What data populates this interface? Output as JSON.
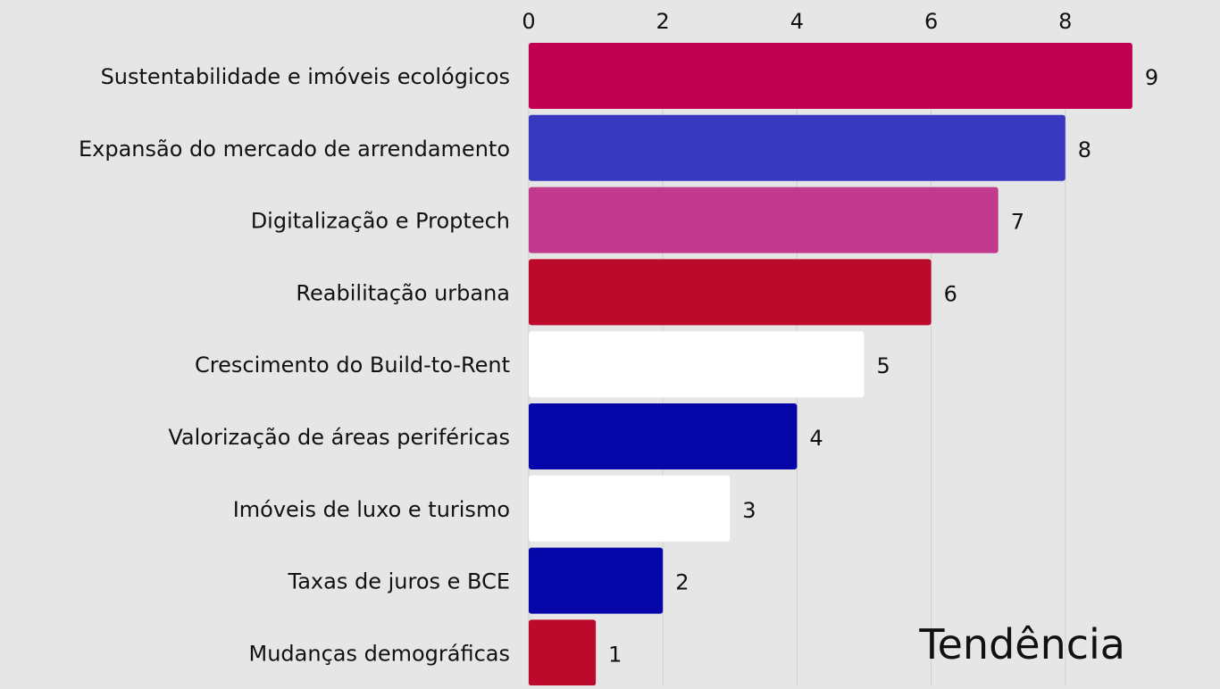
{
  "chart_data": {
    "type": "bar",
    "orientation": "horizontal",
    "title": "Tendência",
    "categories": [
      "Sustentabilidade e imóveis ecológicos",
      "Expansão do mercado de arrendamento",
      "Digitalização e Proptech",
      "Reabilitação urbana",
      "Crescimento do Build-to-Rent",
      "Valorização de áreas periféricas",
      "Imóveis de luxo e turismo",
      "Taxas de juros e BCE",
      "Mudanças demográficas"
    ],
    "values": [
      9,
      8,
      7,
      6,
      5,
      4,
      3,
      2,
      1
    ],
    "bar_colors": [
      "#c20052",
      "#3838c0",
      "#c23a8e",
      "#bb0a2b",
      "#ffffff",
      "#0505a8",
      "#ffffff",
      "#0505a8",
      "#bb0a2b"
    ],
    "xlim": [
      0,
      9
    ],
    "xticks": [
      "0",
      "2",
      "4",
      "6",
      "8"
    ],
    "xtick_values": [
      0,
      2,
      4,
      6,
      8
    ],
    "xaxis_position": "top",
    "grid": true,
    "legend": "none",
    "colors": {
      "background": "#e6e6e6",
      "grid": "#cfcfcf",
      "text": "#111111"
    }
  }
}
